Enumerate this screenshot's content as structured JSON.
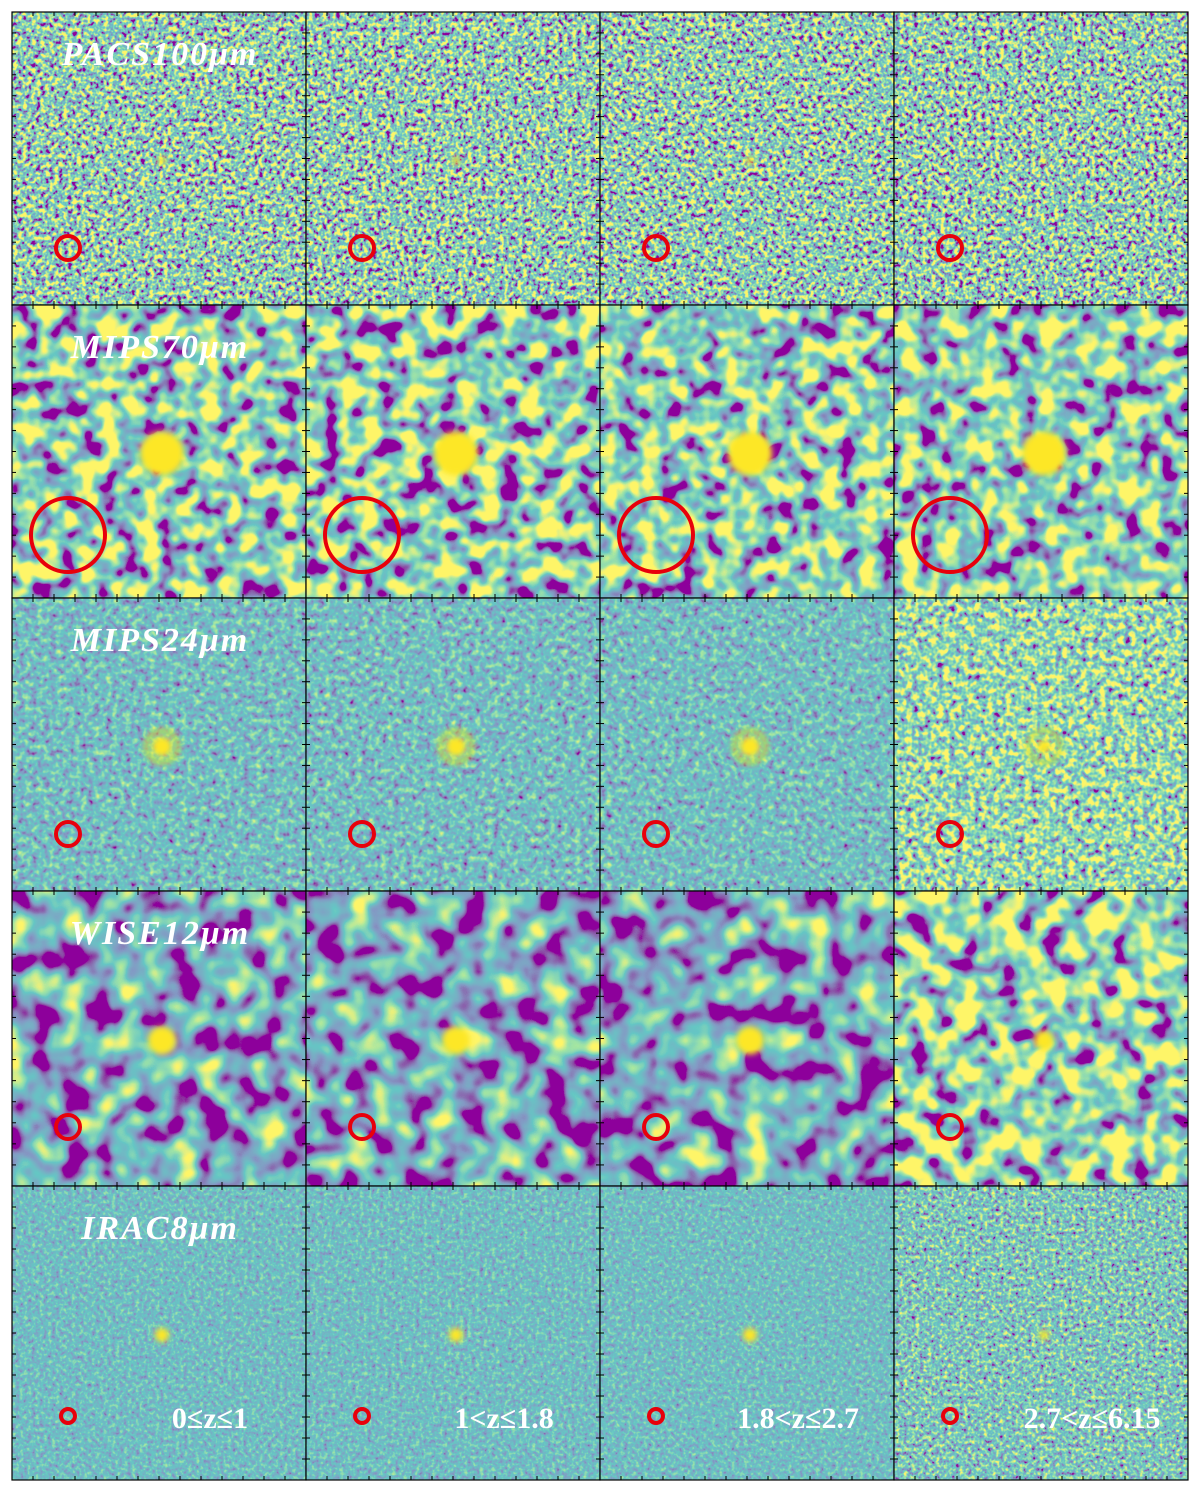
{
  "bands": [
    "PACS100μm",
    "MIPS70μm",
    "MIPS24μm",
    "WISE12μm",
    "IRAC8μm"
  ],
  "redshift_bins": [
    "0≤z≤1",
    "1<z≤1.8",
    "1.8<z≤2.7",
    "2.7<z≤6.15"
  ]
}
